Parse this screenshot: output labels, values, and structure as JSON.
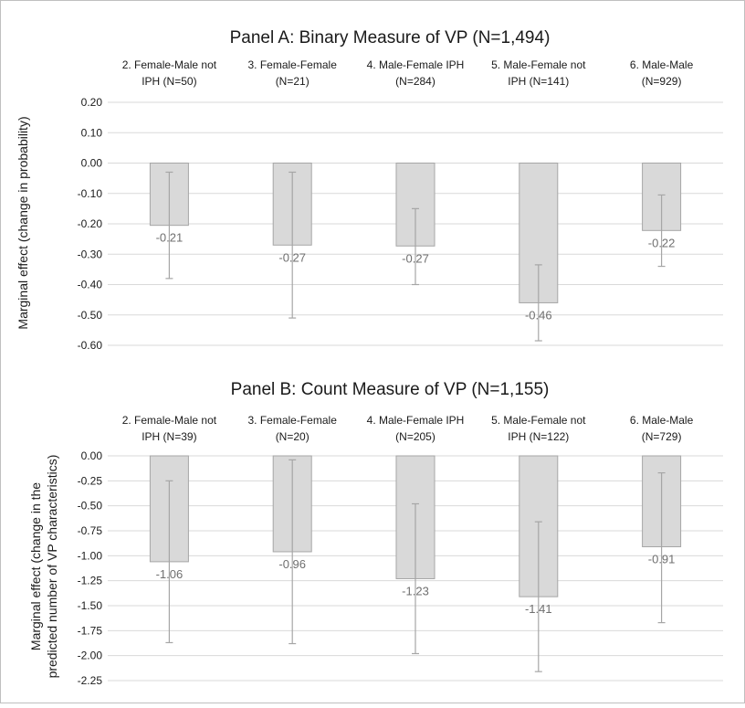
{
  "chart_data": [
    {
      "type": "bar",
      "title": "Panel A: Binary Measure of VP (N=1,494)",
      "ylabel": "Marginal effect (change in probability)",
      "ylim": [
        -0.6,
        0.2
      ],
      "yticks": [
        0.2,
        0.1,
        0.0,
        -0.1,
        -0.2,
        -0.3,
        -0.4,
        -0.5,
        -0.6
      ],
      "ytick_labels": [
        "0.20",
        "0.10",
        "0.00",
        "-0.10",
        "-0.20",
        "-0.30",
        "-0.40",
        "-0.50",
        "-0.60"
      ],
      "grid": true,
      "categories": [
        [
          "2. Female-Male not",
          "IPH (N=50)"
        ],
        [
          "3. Female-Female",
          "(N=21)"
        ],
        [
          "4. Male-Female IPH",
          "(N=284)"
        ],
        [
          "5. Male-Female not",
          "IPH (N=141)"
        ],
        [
          "6. Male-Male",
          "(N=929)"
        ]
      ],
      "values": [
        -0.205,
        -0.27,
        -0.273,
        -0.46,
        -0.222
      ],
      "value_labels": [
        "-0.21",
        "-0.27",
        "-0.27",
        "-0.46",
        "-0.22"
      ],
      "error_low": [
        -0.38,
        -0.51,
        -0.4,
        -0.585,
        -0.34
      ],
      "error_high": [
        -0.03,
        -0.03,
        -0.15,
        -0.335,
        -0.105
      ],
      "colors": {
        "bar_fill": "#d9d9d9",
        "bar_stroke": "#a6a6a6",
        "error": "#a6a6a6",
        "grid": "#d9d9d9"
      }
    },
    {
      "type": "bar",
      "title": "Panel B: Count Measure of VP (N=1,155)",
      "ylabel": [
        "Marginal effect (change in the",
        "predicted number of VP characteristics)"
      ],
      "ylim": [
        -2.25,
        0.0
      ],
      "yticks": [
        0.0,
        -0.25,
        -0.5,
        -0.75,
        -1.0,
        -1.25,
        -1.5,
        -1.75,
        -2.0,
        -2.25
      ],
      "ytick_labels": [
        "0.00",
        "-0.25",
        "-0.50",
        "-0.75",
        "-1.00",
        "-1.25",
        "-1.50",
        "-1.75",
        "-2.00",
        "-2.25"
      ],
      "grid": true,
      "categories": [
        [
          "2. Female-Male not",
          "IPH (N=39)"
        ],
        [
          "3. Female-Female",
          "(N=20)"
        ],
        [
          "4. Male-Female IPH",
          "(N=205)"
        ],
        [
          "5. Male-Female not",
          "IPH (N=122)"
        ],
        [
          "6. Male-Male",
          "(N=729)"
        ]
      ],
      "values": [
        -1.06,
        -0.96,
        -1.23,
        -1.41,
        -0.91
      ],
      "value_labels": [
        "-1.06",
        "-0.96",
        "-1.23",
        "-1.41",
        "-0.91"
      ],
      "error_low": [
        -1.87,
        -1.88,
        -1.98,
        -2.16,
        -1.67
      ],
      "error_high": [
        -0.25,
        -0.04,
        -0.48,
        -0.66,
        -0.17
      ],
      "colors": {
        "bar_fill": "#d9d9d9",
        "bar_stroke": "#a6a6a6",
        "error": "#a6a6a6",
        "grid": "#d9d9d9"
      }
    }
  ]
}
